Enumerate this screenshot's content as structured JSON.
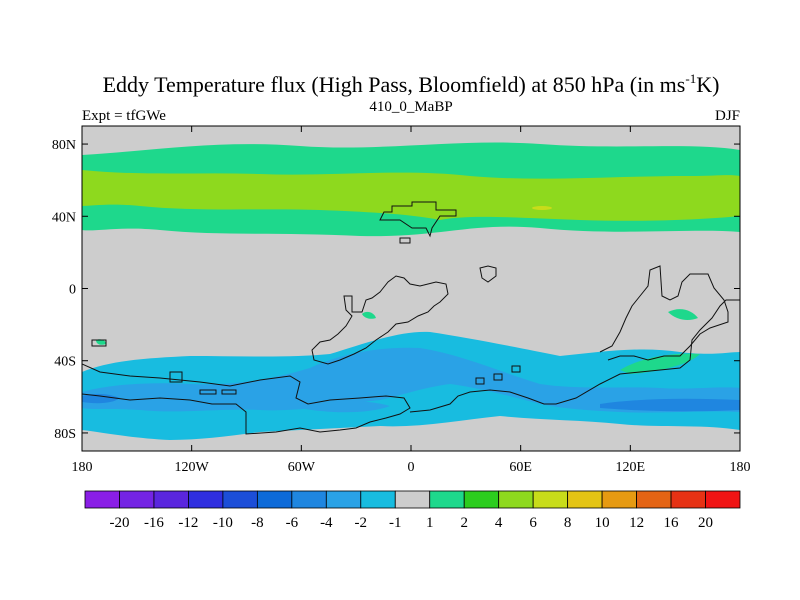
{
  "chart_data": {
    "type": "heatmap",
    "title_main": "Eddy Temperature flux (High Pass, Bloomfield) at 850 hPa (in ms",
    "title_sup": "-1",
    "title_end": "K)",
    "left_label": "Expt = tfGWe",
    "center_label": "410_0_MaBP",
    "right_label": "DJF",
    "x_ticks": [
      "180",
      "120W",
      "60W",
      "0",
      "60E",
      "120E",
      "180"
    ],
    "x_tick_values": [
      -180,
      -120,
      -60,
      0,
      60,
      120,
      180
    ],
    "y_ticks": [
      "80N",
      "40N",
      "0",
      "40S",
      "80S"
    ],
    "y_tick_values": [
      80,
      40,
      0,
      -40,
      -80
    ],
    "xlim": [
      -180,
      180
    ],
    "ylim": [
      -90,
      90
    ],
    "colorbar": {
      "labels": [
        "-20",
        "-16",
        "-12",
        "-10",
        "-8",
        "-6",
        "-4",
        "-2",
        "-1",
        "1",
        "2",
        "4",
        "6",
        "8",
        "10",
        "12",
        "16",
        "20"
      ],
      "colors": [
        "#8a1ee6",
        "#7424e4",
        "#5a26de",
        "#2f2ee0",
        "#1c4ed8",
        "#0d6ad8",
        "#1f86e0",
        "#2aa2e6",
        "#18bce0",
        "#cdcdcd",
        "#1ed88c",
        "#2ccd1e",
        "#8ed91e",
        "#c8dc1a",
        "#e4c414",
        "#e69a12",
        "#e46414",
        "#e63214",
        "#f01414"
      ]
    },
    "regions": [
      {
        "name": "north-band-outer",
        "level": "1",
        "color": "#1ed88c",
        "lon": [
          -180,
          180
        ],
        "lat": [
          30,
          72
        ]
      },
      {
        "name": "north-band-inner",
        "level": "2",
        "color": "#8ed91e",
        "lon": [
          -180,
          180
        ],
        "lat": [
          38,
          62
        ]
      },
      {
        "name": "south-band-outer",
        "level": "-2",
        "color": "#18bce0",
        "lon": [
          -180,
          180
        ],
        "lat": [
          -78,
          -32
        ]
      },
      {
        "name": "south-band-inner",
        "level": "-4",
        "color": "#2aa2e6",
        "lon": [
          -180,
          180
        ],
        "lat": [
          -68,
          -48
        ]
      },
      {
        "name": "indian-ocean-positive",
        "level": "1",
        "color": "#1ed88c",
        "lon": [
          100,
          150
        ],
        "lat": [
          -50,
          -38
        ]
      }
    ]
  }
}
